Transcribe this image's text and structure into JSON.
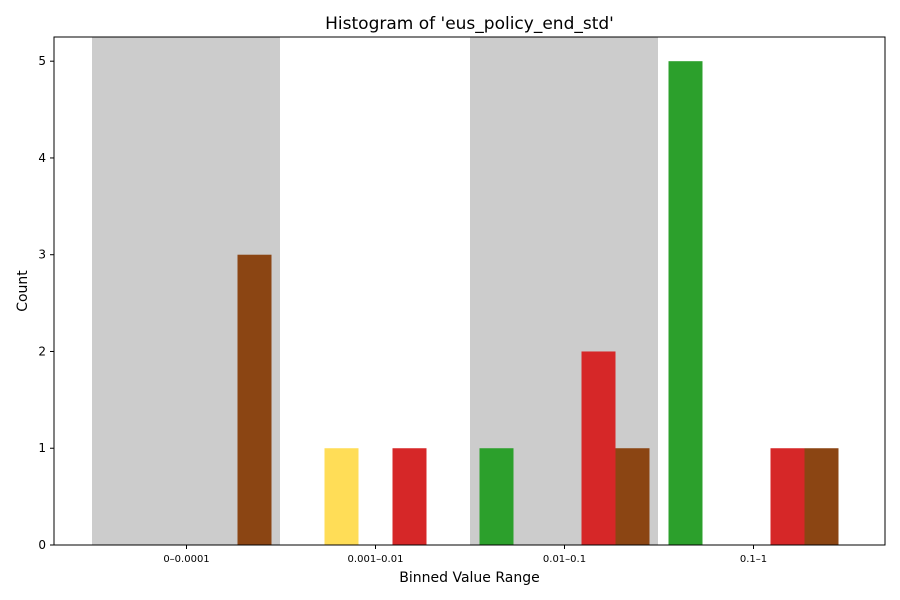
{
  "chart_data": {
    "type": "bar",
    "title": "Histogram of 'eus_policy_end_std'",
    "xlabel": "Binned Value Range",
    "ylabel": "Count",
    "categories": [
      "0–0.0001",
      "0.001–0.01",
      "0.01–0.1",
      "0.1–1"
    ],
    "ylim": [
      0,
      5.25
    ],
    "yticks": [
      0,
      1,
      2,
      3,
      4,
      5
    ],
    "grid": false,
    "shaded_categories": [
      0,
      2
    ],
    "shade_color": "#cccccc",
    "series": [
      {
        "color": "#2ca02c",
        "values": [
          0,
          0,
          1,
          5
        ]
      },
      {
        "color": "#ffdd57",
        "values": [
          0,
          1,
          0,
          0
        ]
      },
      {
        "color": "#1f77b4",
        "values": [
          0,
          0,
          0,
          0
        ]
      },
      {
        "color": "#d62728",
        "values": [
          0,
          1,
          2,
          1
        ]
      },
      {
        "color": "#8b4513",
        "values": [
          3,
          0,
          1,
          1
        ]
      }
    ]
  }
}
